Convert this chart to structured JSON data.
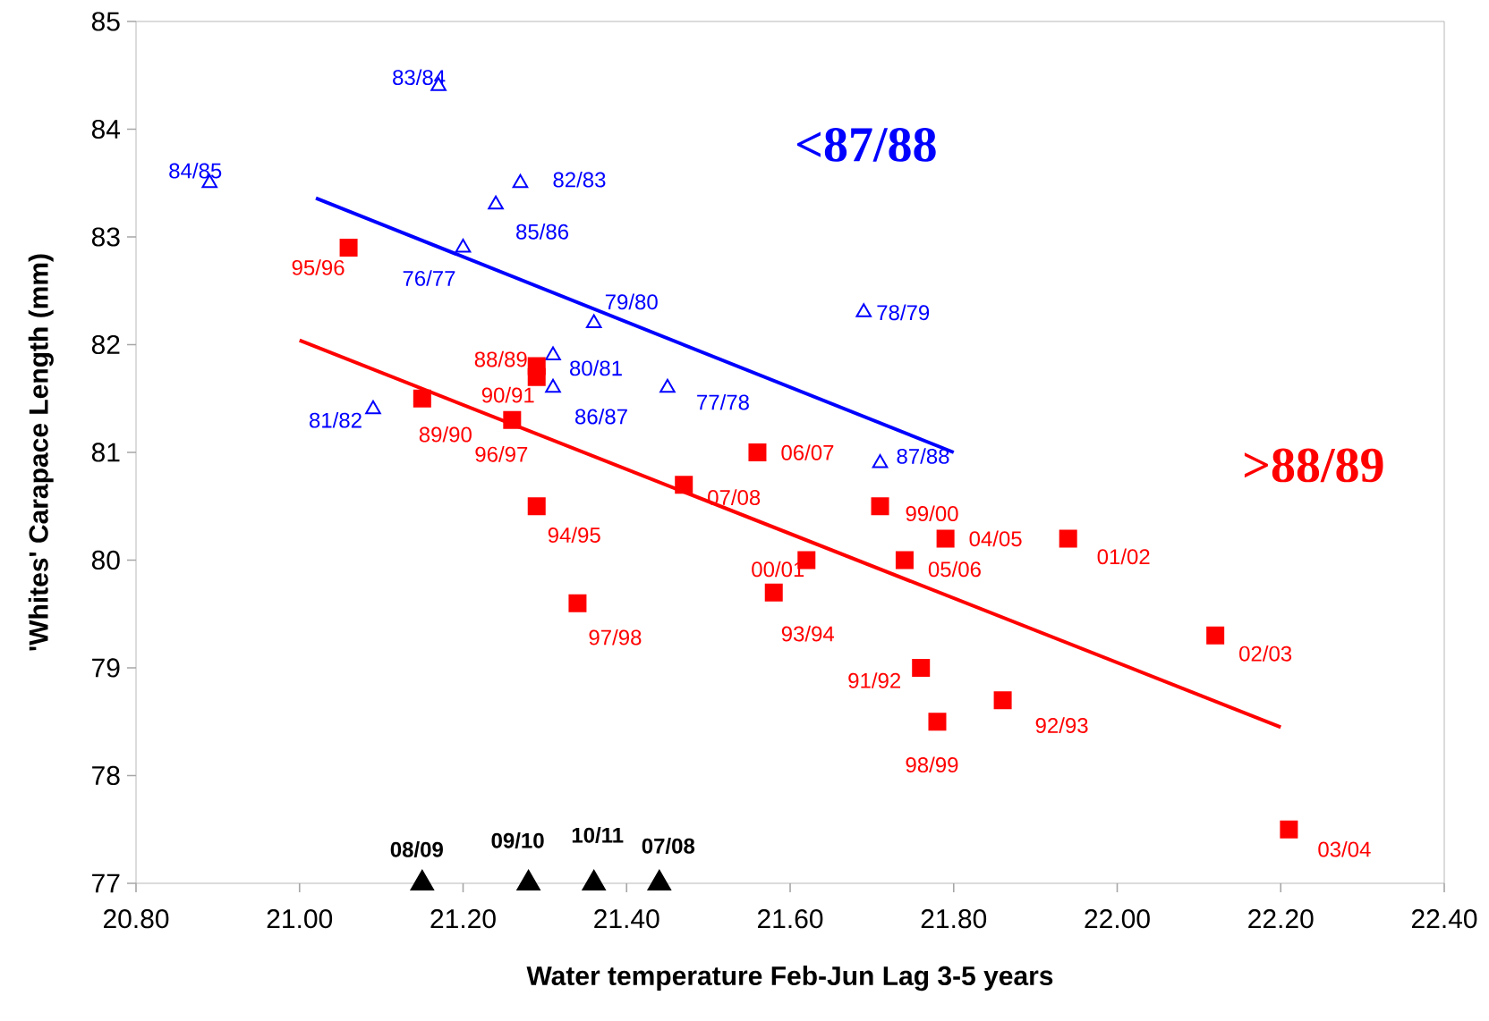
{
  "chart_data": {
    "type": "scatter",
    "xlabel": "Water temperature Feb-Jun Lag 3-5 years",
    "ylabel": "'Whites' Carapace Length (mm)",
    "xlim": [
      20.8,
      22.4
    ],
    "ylim": [
      77,
      85
    ],
    "xticks": [
      {
        "value": 20.8,
        "label": "20.80"
      },
      {
        "value": 21.0,
        "label": "21.00"
      },
      {
        "value": 21.2,
        "label": "21.20"
      },
      {
        "value": 21.4,
        "label": "21.40"
      },
      {
        "value": 21.6,
        "label": "21.60"
      },
      {
        "value": 21.8,
        "label": "21.80"
      },
      {
        "value": 22.0,
        "label": "22.00"
      },
      {
        "value": 22.2,
        "label": "22.20"
      },
      {
        "value": 22.4,
        "label": "22.40"
      }
    ],
    "yticks": [
      77,
      78,
      79,
      80,
      81,
      82,
      83,
      84,
      85
    ],
    "series": [
      {
        "marker": "triangle",
        "color": "#0000ff",
        "x": [
          21.17,
          20.89,
          21.27,
          21.24,
          21.2,
          21.36,
          21.31,
          21.31,
          21.45,
          21.09,
          21.69,
          21.71
        ],
        "values": [
          84.4,
          83.5,
          83.5,
          83.3,
          82.9,
          82.2,
          81.9,
          81.6,
          81.6,
          81.4,
          82.3,
          80.9
        ]
      },
      {
        "marker": "square",
        "color": "#ff0000",
        "x": [
          21.06,
          21.29,
          21.29,
          21.15,
          21.26,
          21.29,
          21.34,
          21.47,
          21.56,
          21.62,
          21.58,
          21.71,
          21.79,
          21.74,
          21.94,
          21.76,
          21.86,
          21.78,
          22.12,
          22.21
        ],
        "values": [
          82.9,
          81.8,
          81.7,
          81.5,
          81.3,
          80.5,
          79.6,
          80.7,
          81.0,
          80.0,
          79.7,
          80.5,
          80.2,
          80.0,
          80.2,
          79.0,
          78.7,
          78.5,
          79.3,
          77.5
        ]
      },
      {
        "marker": "triangle",
        "color": "#000000",
        "x": [
          21.15,
          21.28,
          21.36,
          21.44
        ],
        "values": [
          77,
          77,
          77,
          77
        ]
      },
      {
        "type": "line",
        "marker": "none",
        "color": "#0000ff",
        "x": [
          21.02,
          21.8
        ],
        "values": [
          83.36,
          81.0
        ]
      },
      {
        "type": "line",
        "marker": "none",
        "color": "#ff0000",
        "x": [
          21.0,
          22.2
        ],
        "values": [
          82.04,
          78.45
        ]
      }
    ],
    "annotations": [
      {
        "text": "83/84",
        "x": 21.17,
        "y": 84.4
      },
      {
        "text": "84/85",
        "x": 20.89,
        "y": 83.5
      },
      {
        "text": "82/83",
        "x": 21.27,
        "y": 83.5
      },
      {
        "text": "85/86",
        "x": 21.24,
        "y": 83.3
      },
      {
        "text": "76/77",
        "x": 21.2,
        "y": 82.9
      },
      {
        "text": "79/80",
        "x": 21.36,
        "y": 82.2
      },
      {
        "text": "80/81",
        "x": 21.31,
        "y": 81.9
      },
      {
        "text": "86/87",
        "x": 21.31,
        "y": 81.6
      },
      {
        "text": "77/78",
        "x": 21.45,
        "y": 81.6
      },
      {
        "text": "81/82",
        "x": 21.09,
        "y": 81.4
      },
      {
        "text": "78/79",
        "x": 21.69,
        "y": 82.3
      },
      {
        "text": "87/88",
        "x": 21.71,
        "y": 80.9
      },
      {
        "text": "95/96",
        "x": 21.06,
        "y": 82.9
      },
      {
        "text": "88/89",
        "x": 21.29,
        "y": 81.8
      },
      {
        "text": "90/91",
        "x": 21.29,
        "y": 81.7
      },
      {
        "text": "89/90",
        "x": 21.15,
        "y": 81.5
      },
      {
        "text": "96/97",
        "x": 21.26,
        "y": 81.3
      },
      {
        "text": "94/95",
        "x": 21.29,
        "y": 80.5
      },
      {
        "text": "97/98",
        "x": 21.34,
        "y": 79.6
      },
      {
        "text": "07/08",
        "x": 21.47,
        "y": 80.7
      },
      {
        "text": "06/07",
        "x": 21.56,
        "y": 81.0
      },
      {
        "text": "00/01",
        "x": 21.62,
        "y": 80.0
      },
      {
        "text": "93/94",
        "x": 21.58,
        "y": 79.7
      },
      {
        "text": "99/00",
        "x": 21.71,
        "y": 80.5
      },
      {
        "text": "04/05",
        "x": 21.79,
        "y": 80.2
      },
      {
        "text": "05/06",
        "x": 21.74,
        "y": 80.0
      },
      {
        "text": "01/02",
        "x": 21.94,
        "y": 80.2
      },
      {
        "text": "91/92",
        "x": 21.76,
        "y": 79.0
      },
      {
        "text": "92/93",
        "x": 21.86,
        "y": 78.7
      },
      {
        "text": "98/99",
        "x": 21.78,
        "y": 78.5
      },
      {
        "text": "02/03",
        "x": 22.12,
        "y": 79.3
      },
      {
        "text": "03/04",
        "x": 22.21,
        "y": 77.5
      },
      {
        "text": "**08/09**",
        "x": 21.15,
        "y": 77
      },
      {
        "text": "**09/10**",
        "x": 21.28,
        "y": 77
      },
      {
        "text": "**10/11**",
        "x": 21.36,
        "y": 77
      },
      {
        "text": "**07/08**",
        "x": 21.44,
        "y": 77
      },
      "<87/88",
      ">88/89"
    ]
  }
}
